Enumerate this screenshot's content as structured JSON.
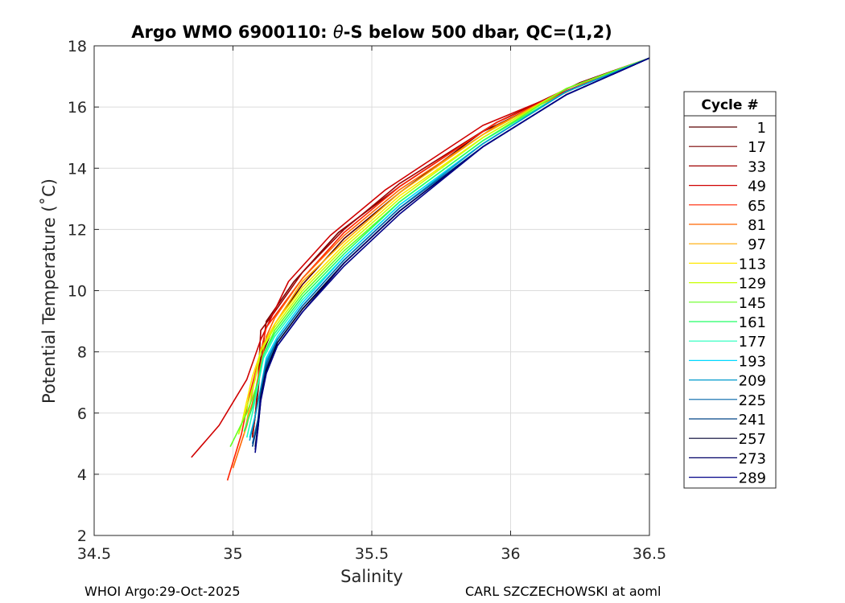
{
  "chart_data": {
    "type": "line",
    "title_main": "Argo WMO 6900110: ",
    "title_theta": "θ",
    "title_rest": "-S below 500 dbar,  QC=(1,2)",
    "xlabel": "Salinity",
    "ylabel": "Potential Temperature (˚C)",
    "xlim": [
      34.5,
      36.5
    ],
    "ylim": [
      2,
      18
    ],
    "x_ticks": [
      34.5,
      35,
      35.5,
      36,
      36.5
    ],
    "x_tick_labels": [
      "34.5",
      "35",
      "35.5",
      "36",
      "36.5"
    ],
    "y_ticks": [
      2,
      4,
      6,
      8,
      10,
      12,
      14,
      16,
      18
    ],
    "y_tick_labels": [
      "2",
      "4",
      "6",
      "8",
      "10",
      "12",
      "14",
      "16",
      "18"
    ],
    "grid": true,
    "legend_title": "Cycle #",
    "legend_position": "right",
    "series": [
      {
        "name": "1",
        "color": "#5a0000",
        "x": [
          36.5,
          36.2,
          35.9,
          35.6,
          35.4,
          35.25,
          35.15,
          35.1,
          35.09,
          35.08,
          35.07
        ],
        "y": [
          17.6,
          16.5,
          15.2,
          13.2,
          11.7,
          10.2,
          8.9,
          7.8,
          6.8,
          5.9,
          5.2
        ]
      },
      {
        "name": "17",
        "color": "#7a0000",
        "x": [
          36.5,
          36.25,
          35.95,
          35.6,
          35.38,
          35.22,
          35.12,
          35.1,
          35.09,
          35.08,
          35.07
        ],
        "y": [
          17.6,
          16.8,
          15.5,
          13.4,
          11.9,
          10.3,
          9.0,
          7.6,
          6.7,
          5.9,
          5.3
        ]
      },
      {
        "name": "33",
        "color": "#a00000",
        "x": [
          36.5,
          36.3,
          35.95,
          35.6,
          35.4,
          35.25,
          35.15,
          35.1,
          35.09,
          35.08,
          35.07
        ],
        "y": [
          17.6,
          16.9,
          15.5,
          13.5,
          12.0,
          10.6,
          9.3,
          8.7,
          7.0,
          5.9,
          5.2
        ]
      },
      {
        "name": "49",
        "color": "#d00000",
        "x": [
          36.5,
          36.3,
          35.9,
          35.55,
          35.35,
          35.2,
          35.1,
          35.05,
          34.95,
          34.85
        ],
        "y": [
          17.6,
          16.9,
          15.4,
          13.3,
          11.8,
          10.3,
          8.4,
          7.1,
          5.6,
          4.55
        ]
      },
      {
        "name": "65",
        "color": "#ff2200",
        "x": [
          36.5,
          36.3,
          35.95,
          35.6,
          35.4,
          35.25,
          35.12,
          35.1,
          35.06,
          35.03,
          34.98
        ],
        "y": [
          17.6,
          16.9,
          15.5,
          13.4,
          11.9,
          10.4,
          8.8,
          8.0,
          6.6,
          5.3,
          3.8
        ]
      },
      {
        "name": "81",
        "color": "#ff6600",
        "x": [
          36.5,
          36.25,
          35.95,
          35.6,
          35.4,
          35.25,
          35.15,
          35.12,
          35.1,
          35.08,
          35.05,
          35.0
        ],
        "y": [
          17.6,
          16.7,
          15.4,
          13.3,
          11.8,
          10.4,
          9.1,
          8.5,
          7.6,
          6.7,
          5.6,
          4.2
        ]
      },
      {
        "name": "97",
        "color": "#ffaa00",
        "x": [
          36.5,
          36.2,
          35.9,
          35.6,
          35.4,
          35.25,
          35.15,
          35.1,
          35.08,
          35.06,
          35.04
        ],
        "y": [
          17.6,
          16.6,
          15.1,
          13.2,
          11.6,
          10.3,
          8.9,
          8.1,
          7.2,
          6.2,
          5.3
        ]
      },
      {
        "name": "113",
        "color": "#ffe800",
        "x": [
          36.5,
          36.2,
          35.9,
          35.6,
          35.4,
          35.25,
          35.15,
          35.1,
          35.07,
          35.05,
          35.03
        ],
        "y": [
          17.6,
          16.6,
          15.0,
          13.1,
          11.5,
          10.1,
          8.9,
          8.0,
          7.2,
          6.4,
          5.6
        ]
      },
      {
        "name": "129",
        "color": "#c8ff00",
        "x": [
          36.5,
          36.2,
          35.9,
          35.6,
          35.4,
          35.25,
          35.15,
          35.1,
          35.08,
          35.05,
          35.02
        ],
        "y": [
          17.6,
          16.6,
          15.0,
          13.0,
          11.4,
          10.0,
          8.8,
          8.0,
          7.1,
          6.2,
          5.3
        ]
      },
      {
        "name": "145",
        "color": "#66ff22",
        "x": [
          36.5,
          36.2,
          35.9,
          35.6,
          35.4,
          35.25,
          35.15,
          35.11,
          35.09,
          35.05,
          34.99
        ],
        "y": [
          17.6,
          16.6,
          14.9,
          12.9,
          11.3,
          9.9,
          8.7,
          7.9,
          7.0,
          6.0,
          4.9
        ]
      },
      {
        "name": "161",
        "color": "#22ff66",
        "x": [
          36.5,
          36.2,
          35.9,
          35.6,
          35.4,
          35.25,
          35.15,
          35.11,
          35.09,
          35.07,
          35.04
        ],
        "y": [
          17.6,
          16.5,
          14.9,
          12.9,
          11.2,
          9.8,
          8.6,
          7.9,
          7.0,
          6.2,
          5.4
        ]
      },
      {
        "name": "177",
        "color": "#22ffbb",
        "x": [
          36.5,
          36.2,
          35.9,
          35.6,
          35.4,
          35.25,
          35.15,
          35.11,
          35.09,
          35.07,
          35.05
        ],
        "y": [
          17.6,
          16.5,
          14.8,
          12.8,
          11.1,
          9.7,
          8.5,
          7.8,
          6.9,
          6.0,
          5.2
        ]
      },
      {
        "name": "193",
        "color": "#00d8ff",
        "x": [
          36.5,
          36.2,
          35.9,
          35.6,
          35.4,
          35.25,
          35.16,
          35.12,
          35.1,
          35.08,
          35.06
        ],
        "y": [
          17.6,
          16.5,
          14.8,
          12.8,
          11.1,
          9.6,
          8.5,
          7.8,
          6.8,
          5.9,
          5.2
        ]
      },
      {
        "name": "209",
        "color": "#0099cc",
        "x": [
          36.5,
          36.2,
          35.9,
          35.6,
          35.4,
          35.25,
          35.16,
          35.12,
          35.1,
          35.08,
          35.06
        ],
        "y": [
          17.6,
          16.5,
          14.8,
          12.7,
          11.0,
          9.5,
          8.4,
          7.7,
          6.8,
          5.9,
          5.1
        ]
      },
      {
        "name": "225",
        "color": "#0066aa",
        "x": [
          36.5,
          36.2,
          35.9,
          35.6,
          35.4,
          35.25,
          35.16,
          35.12,
          35.1,
          35.09,
          35.07
        ],
        "y": [
          17.6,
          16.4,
          14.7,
          12.7,
          11.0,
          9.5,
          8.4,
          7.6,
          6.7,
          5.8,
          5.0
        ]
      },
      {
        "name": "241",
        "color": "#004488",
        "x": [
          36.5,
          36.2,
          35.9,
          35.6,
          35.4,
          35.25,
          35.16,
          35.12,
          35.1,
          35.09,
          35.07
        ],
        "y": [
          17.6,
          16.4,
          14.7,
          12.6,
          10.9,
          9.4,
          8.3,
          7.5,
          6.6,
          5.7,
          4.9
        ]
      },
      {
        "name": "257",
        "color": "#000030",
        "x": [
          36.5,
          36.2,
          35.9,
          35.6,
          35.4,
          35.25,
          35.16,
          35.12,
          35.1,
          35.09,
          35.08
        ],
        "y": [
          17.6,
          16.4,
          14.7,
          12.6,
          10.9,
          9.4,
          8.3,
          7.4,
          6.5,
          5.6,
          4.9
        ]
      },
      {
        "name": "273",
        "color": "#000066",
        "x": [
          36.5,
          36.2,
          35.9,
          35.6,
          35.4,
          35.25,
          35.16,
          35.12,
          35.1,
          35.09,
          35.08
        ],
        "y": [
          17.6,
          16.4,
          14.7,
          12.6,
          10.9,
          9.3,
          8.2,
          7.3,
          6.4,
          5.5,
          4.8
        ]
      },
      {
        "name": "289",
        "color": "#000088",
        "x": [
          36.5,
          36.2,
          35.9,
          35.6,
          35.4,
          35.25,
          35.16,
          35.12,
          35.1,
          35.09,
          35.08
        ],
        "y": [
          17.6,
          16.4,
          14.7,
          12.5,
          10.8,
          9.3,
          8.2,
          7.3,
          6.4,
          5.5,
          4.7
        ]
      }
    ]
  },
  "footer": {
    "left": "WHOI Argo:29-Oct-2025",
    "right": "CARL SZCZECHOWSKI at aoml"
  }
}
